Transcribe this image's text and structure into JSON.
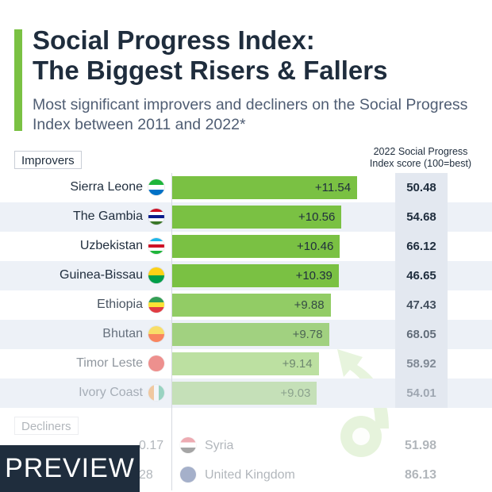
{
  "title_line1": "Social Progress Index:",
  "title_line2": "The Biggest Risers & Fallers",
  "subtitle": "Most significant improvers and decliners on the Social Progress Index between 2011 and 2022*",
  "improvers_label": "Improvers",
  "decliners_label": "Decliners",
  "score_header_line1": "2022 Social Progress",
  "score_header_line2": "Index score (100=best)",
  "preview_label": "PREVIEW",
  "colors": {
    "accent": "#7ac143",
    "bar": "#7ac143",
    "decliner": "#e0403a",
    "navy": "#1f2d3d"
  },
  "chart_data": {
    "type": "bar",
    "orientation": "horizontal",
    "title": "Social Progress Index: The Biggest Risers & Fallers",
    "xlim": [
      0,
      12
    ],
    "improvers": [
      {
        "country": "Sierra Leone",
        "change": 11.54,
        "change_label": "+11.54",
        "score": "50.48",
        "flag": "sierra-leone-flag-icon"
      },
      {
        "country": "The Gambia",
        "change": 10.56,
        "change_label": "+10.56",
        "score": "54.68",
        "flag": "gambia-flag-icon"
      },
      {
        "country": "Uzbekistan",
        "change": 10.46,
        "change_label": "+10.46",
        "score": "66.12",
        "flag": "uzbekistan-flag-icon"
      },
      {
        "country": "Guinea-Bissau",
        "change": 10.39,
        "change_label": "+10.39",
        "score": "46.65",
        "flag": "guinea-bissau-flag-icon"
      },
      {
        "country": "Ethiopia",
        "change": 9.88,
        "change_label": "+9.88",
        "score": "47.43",
        "flag": "ethiopia-flag-icon"
      },
      {
        "country": "Bhutan",
        "change": 9.78,
        "change_label": "+9.78",
        "score": "68.05",
        "flag": "bhutan-flag-icon"
      },
      {
        "country": "Timor Leste",
        "change": 9.14,
        "change_label": "+9.14",
        "score": "58.92",
        "flag": "timor-leste-flag-icon"
      },
      {
        "country": "Ivory Coast",
        "change": 9.03,
        "change_label": "+9.03",
        "score": "54.01",
        "flag": "ivory-coast-flag-icon"
      }
    ],
    "decliners": [
      {
        "country": "Syria",
        "change_label": "0.17",
        "score": "51.98"
      },
      {
        "country": "United Kingdom",
        "change_label": "28",
        "score": "86.13"
      }
    ]
  }
}
